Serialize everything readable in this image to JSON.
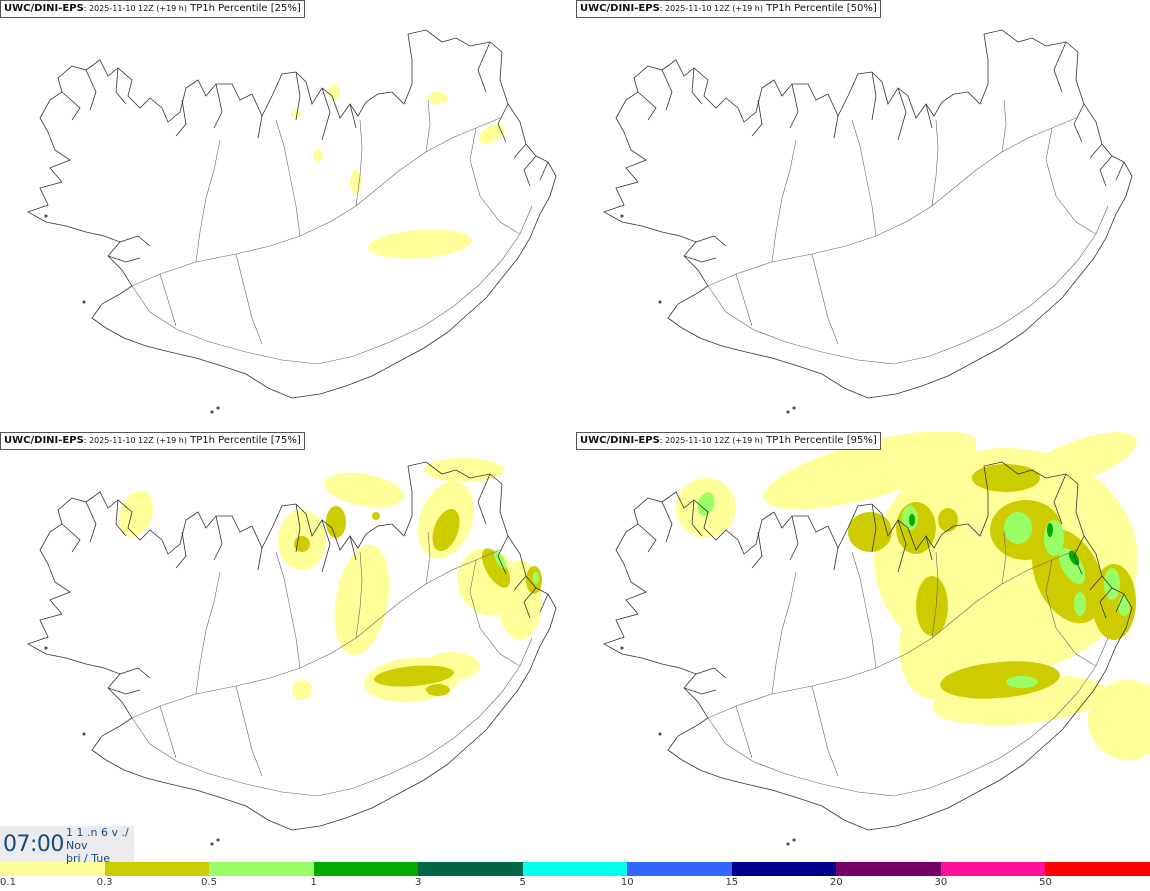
{
  "panels": [
    {
      "source": "UWC/DINI-EPS",
      "run_info": ": 2025-11-10 12Z (+19 h)",
      "variable": " TP1h Percentile ",
      "percentile": "[25%]",
      "level": 0
    },
    {
      "source": "UWC/DINI-EPS",
      "run_info": ": 2025-11-10 12Z (+19 h)",
      "variable": " TP1h Percentile ",
      "percentile": "[50%]",
      "level": 1
    },
    {
      "source": "UWC/DINI-EPS",
      "run_info": ": 2025-11-10 12Z (+19 h)",
      "variable": " TP1h Percentile ",
      "percentile": "[75%]",
      "level": 2
    },
    {
      "source": "UWC/DINI-EPS",
      "run_info": ": 2025-11-10 12Z (+19 h)",
      "variable": " TP1h Percentile ",
      "percentile": "[95%]",
      "level": 3
    }
  ],
  "time_display": {
    "time": "07:00",
    "line1": "1 1 .n 6 v ./",
    "line2": "Nov",
    "line3": "þri / Tue"
  },
  "legend": {
    "colors": [
      "#ffff99",
      "#cccc00",
      "#99ff66",
      "#00aa00",
      "#006644",
      "#00ffee",
      "#3366ff",
      "#000088",
      "#770066",
      "#ff1199",
      "#ff0000"
    ],
    "labels": [
      "0.1",
      "0.3",
      "0.5",
      "1",
      "3",
      "5",
      "10",
      "15",
      "20",
      "30",
      "50"
    ]
  },
  "shading_colors": {
    "light": "#ffff99",
    "medium": "#cccc00",
    "pale_green": "#99ff66",
    "green": "#00aa00"
  }
}
